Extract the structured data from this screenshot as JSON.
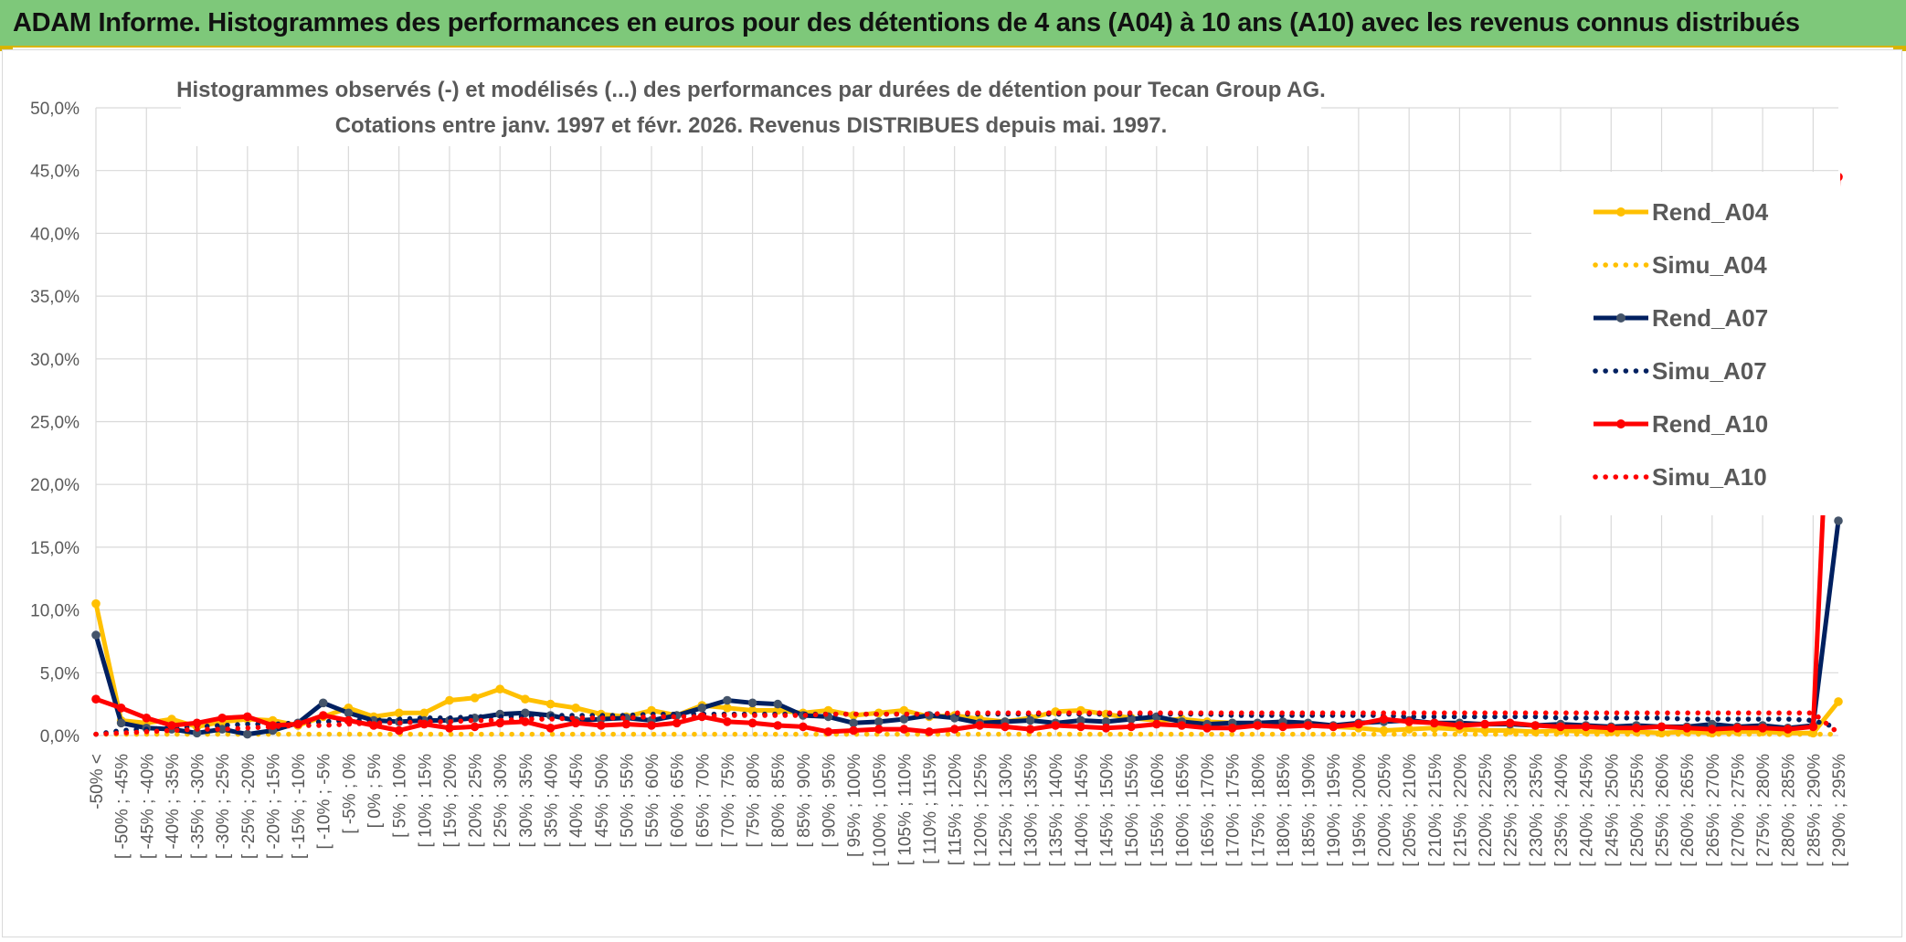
{
  "header": {
    "title": "ADAM Informe. Histogrammes des performances en euros pour des détentions de 4 ans (A04) à 10 ans (A10) avec les revenus connus distribués"
  },
  "chart_data": {
    "type": "line",
    "title_line1": "Histogrammes observés (-) et modélisés (...) des performances par durées de détention pour Tecan Group AG.",
    "title_line2": "Cotations entre janv. 1997 et févr. 2026. Revenus DISTRIBUES depuis mai. 1997.",
    "ylim": [
      0,
      50
    ],
    "yticks": [
      "0,0%",
      "5,0%",
      "10,0%",
      "15,0%",
      "20,0%",
      "25,0%",
      "30,0%",
      "35,0%",
      "40,0%",
      "45,0%",
      "50,0%"
    ],
    "grid": true,
    "legend_position": "right",
    "categories": [
      "-50% <",
      "[ -50% ; -45%",
      "[ -45% ; -40%",
      "[ -40% ; -35%",
      "[ -35% ; -30%",
      "[ -30% ; -25%",
      "[ -25% ; -20%",
      "[ -20% ; -15%",
      "[ -15% ; -10%",
      "[ -10% ; -5%",
      "[ -5% ; 0%",
      "[ 0% ; 5%",
      "[ 5% ; 10%",
      "[ 10% ; 15%",
      "[ 15% ; 20%",
      "[ 20% ; 25%",
      "[ 25% ; 30%",
      "[ 30% ; 35%",
      "[ 35% ; 40%",
      "[ 40% ; 45%",
      "[ 45% ; 50%",
      "[ 50% ; 55%",
      "[ 55% ; 60%",
      "[ 60% ; 65%",
      "[ 65% ; 70%",
      "[ 70% ; 75%",
      "[ 75% ; 80%",
      "[ 80% ; 85%",
      "[ 85% ; 90%",
      "[ 90% ; 95%",
      "[ 95% ; 100%",
      "[ 100% ; 105%",
      "[ 105% ; 110%",
      "[ 110% ; 115%",
      "[ 115% ; 120%",
      "[ 120% ; 125%",
      "[ 125% ; 130%",
      "[ 130% ; 135%",
      "[ 135% ; 140%",
      "[ 140% ; 145%",
      "[ 145% ; 150%",
      "[ 150% ; 155%",
      "[ 155% ; 160%",
      "[ 160% ; 165%",
      "[ 165% ; 170%",
      "[ 170% ; 175%",
      "[ 175% ; 180%",
      "[ 180% ; 185%",
      "[ 185% ; 190%",
      "[ 190% ; 195%",
      "[ 195% ; 200%",
      "[ 200% ; 205%",
      "[ 205% ; 210%",
      "[ 210% ; 215%",
      "[ 215% ; 220%",
      "[ 220% ; 225%",
      "[ 225% ; 230%",
      "[ 230% ; 235%",
      "[ 235% ; 240%",
      "[ 240% ; 245%",
      "[ 245% ; 250%",
      "[ 250% ; 255%",
      "[ 255% ; 260%",
      "[ 260% ; 265%",
      "[ 265% ; 270%",
      "[ 270% ; 275%",
      "[ 275% ; 280%",
      "[ 280% ; 285%",
      "[ 285% ; 290%",
      "[ 290% ; 295%"
    ],
    "series": [
      {
        "name": "Rend_A04",
        "style": "solid",
        "color": "#ffc000",
        "values": [
          10.5,
          1.2,
          1.0,
          1.3,
          0.7,
          1.1,
          1.3,
          1.2,
          0.8,
          1.5,
          2.2,
          1.5,
          1.8,
          1.8,
          2.8,
          3.0,
          3.7,
          2.9,
          2.5,
          2.2,
          1.7,
          1.5,
          2.0,
          1.6,
          2.4,
          2.2,
          2.0,
          2.0,
          1.8,
          2.0,
          1.6,
          1.8,
          2.0,
          1.5,
          1.6,
          1.3,
          1.1,
          1.4,
          1.9,
          2.0,
          1.7,
          1.4,
          1.2,
          1.3,
          1.1,
          1.0,
          0.9,
          1.0,
          0.8,
          0.7,
          0.6,
          0.4,
          0.5,
          0.6,
          0.5,
          0.4,
          0.4,
          0.3,
          0.4,
          0.3,
          0.3,
          0.3,
          0.2,
          0.3,
          0.2,
          0.3,
          0.3,
          0.2,
          0.2,
          2.7
        ]
      },
      {
        "name": "Simu_A04",
        "style": "dotted",
        "color": "#ffc000",
        "values": [
          0.1,
          0.1,
          0.1,
          0.1,
          0.1,
          0.1,
          0.1,
          0.1,
          0.1,
          0.1,
          0.1,
          0.1,
          0.1,
          0.1,
          0.1,
          0.1,
          0.1,
          0.1,
          0.1,
          0.1,
          0.1,
          0.1,
          0.1,
          0.1,
          0.1,
          0.1,
          0.1,
          0.1,
          0.1,
          0.1,
          0.1,
          0.1,
          0.1,
          0.1,
          0.1,
          0.1,
          0.1,
          0.1,
          0.1,
          0.1,
          0.1,
          0.1,
          0.1,
          0.1,
          0.1,
          0.1,
          0.1,
          0.1,
          0.1,
          0.1,
          0.1,
          0.1,
          0.1,
          0.1,
          0.1,
          0.1,
          0.1,
          0.1,
          0.1,
          0.1,
          0.1,
          0.1,
          0.1,
          0.1,
          0.1,
          0.1,
          0.1,
          0.1,
          0.1,
          0.1
        ]
      },
      {
        "name": "Rend_A07",
        "style": "solid",
        "color": "#002060",
        "values": [
          8.0,
          1.0,
          0.6,
          0.5,
          0.2,
          0.5,
          0.1,
          0.4,
          1.0,
          2.6,
          1.8,
          1.2,
          1.1,
          1.2,
          1.2,
          1.4,
          1.7,
          1.8,
          1.6,
          1.2,
          1.3,
          1.4,
          1.2,
          1.6,
          2.2,
          2.8,
          2.6,
          2.5,
          1.6,
          1.5,
          1.0,
          1.1,
          1.3,
          1.6,
          1.4,
          1.0,
          1.1,
          1.2,
          1.0,
          1.2,
          1.1,
          1.3,
          1.5,
          1.1,
          0.9,
          1.0,
          1.0,
          1.1,
          1.0,
          0.8,
          1.0,
          1.1,
          1.2,
          1.0,
          1.0,
          0.9,
          0.9,
          0.8,
          0.9,
          0.8,
          0.7,
          0.8,
          0.7,
          0.7,
          0.9,
          0.7,
          0.8,
          0.6,
          0.8,
          17.1
        ]
      },
      {
        "name": "Simu_A07",
        "style": "dotted",
        "color": "#002060",
        "values": [
          0.1,
          0.4,
          0.5,
          0.6,
          0.7,
          0.8,
          0.9,
          0.9,
          1.0,
          1.1,
          1.2,
          1.2,
          1.3,
          1.4,
          1.4,
          1.5,
          1.5,
          1.5,
          1.6,
          1.6,
          1.6,
          1.6,
          1.7,
          1.7,
          1.7,
          1.7,
          1.7,
          1.7,
          1.7,
          1.7,
          1.7,
          1.7,
          1.7,
          1.7,
          1.7,
          1.7,
          1.7,
          1.7,
          1.7,
          1.7,
          1.7,
          1.7,
          1.7,
          1.7,
          1.7,
          1.6,
          1.6,
          1.6,
          1.6,
          1.6,
          1.6,
          1.6,
          1.5,
          1.5,
          1.5,
          1.5,
          1.5,
          1.5,
          1.4,
          1.4,
          1.4,
          1.4,
          1.4,
          1.3,
          1.3,
          1.3,
          1.3,
          1.3,
          1.2,
          0.6
        ]
      },
      {
        "name": "Rend_A10",
        "style": "solid",
        "color": "#ff0000",
        "values": [
          2.9,
          2.2,
          1.4,
          0.8,
          1.0,
          1.4,
          1.5,
          0.8,
          0.9,
          1.6,
          1.2,
          0.8,
          0.4,
          0.9,
          0.6,
          0.7,
          1.0,
          1.1,
          0.6,
          1.0,
          0.8,
          0.9,
          0.8,
          1.0,
          1.5,
          1.1,
          1.0,
          0.8,
          0.7,
          0.3,
          0.4,
          0.5,
          0.5,
          0.3,
          0.5,
          0.8,
          0.7,
          0.5,
          0.8,
          0.7,
          0.6,
          0.7,
          0.9,
          0.8,
          0.6,
          0.6,
          0.8,
          0.7,
          0.8,
          0.7,
          0.9,
          1.3,
          1.1,
          1.0,
          0.8,
          0.9,
          1.0,
          0.8,
          0.7,
          0.7,
          0.6,
          0.6,
          0.7,
          0.6,
          0.5,
          0.6,
          0.6,
          0.5,
          0.7,
          44.5
        ]
      },
      {
        "name": "Simu_A10",
        "style": "dotted",
        "color": "#ff0000",
        "values": [
          0.1,
          0.2,
          0.3,
          0.4,
          0.5,
          0.5,
          0.6,
          0.7,
          0.8,
          0.8,
          0.9,
          1.0,
          1.0,
          1.1,
          1.1,
          1.2,
          1.2,
          1.3,
          1.3,
          1.4,
          1.4,
          1.4,
          1.5,
          1.5,
          1.5,
          1.6,
          1.6,
          1.6,
          1.6,
          1.7,
          1.7,
          1.7,
          1.7,
          1.7,
          1.8,
          1.8,
          1.8,
          1.8,
          1.8,
          1.8,
          1.8,
          1.8,
          1.8,
          1.8,
          1.8,
          1.8,
          1.8,
          1.8,
          1.8,
          1.8,
          1.8,
          1.8,
          1.8,
          1.8,
          1.8,
          1.8,
          1.8,
          1.8,
          1.8,
          1.8,
          1.8,
          1.8,
          1.8,
          1.8,
          1.8,
          1.8,
          1.8,
          1.8,
          1.8,
          0.2
        ]
      }
    ]
  }
}
